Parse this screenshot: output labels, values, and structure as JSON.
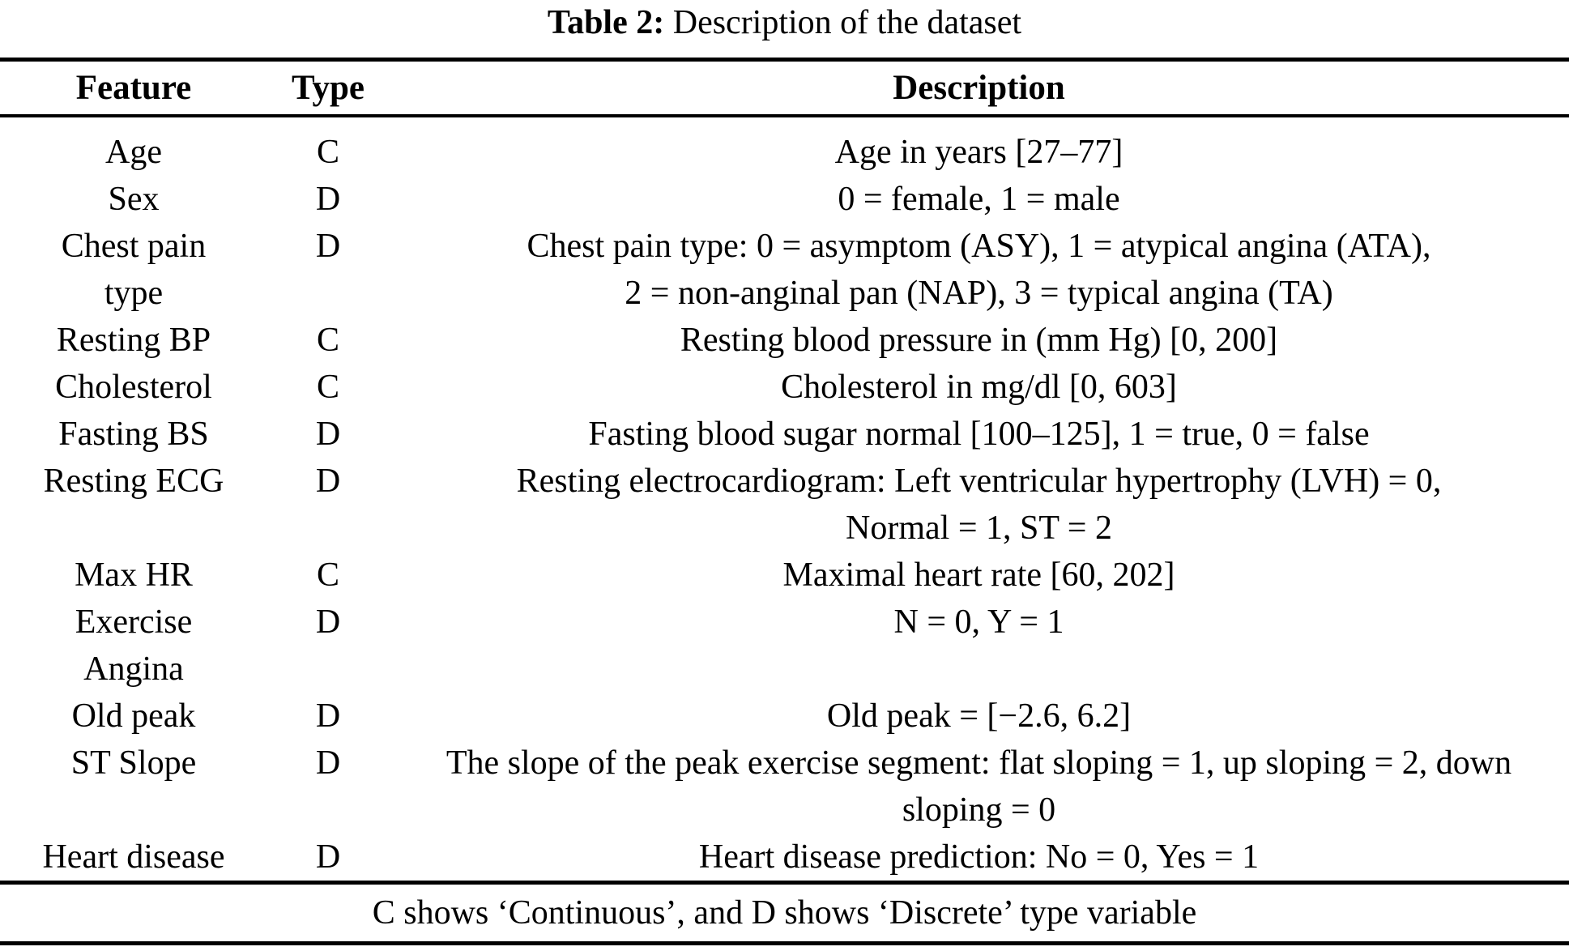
{
  "caption": {
    "label": "Table 2:",
    "text": " Description of the dataset"
  },
  "table": {
    "columns": [
      "Feature",
      "Type",
      "Description"
    ],
    "rows": [
      {
        "feature": [
          "Age"
        ],
        "type": "C",
        "description": [
          "Age in years [27–77]"
        ]
      },
      {
        "feature": [
          "Sex"
        ],
        "type": "D",
        "description": [
          "0 = female, 1 = male"
        ]
      },
      {
        "feature": [
          "Chest pain",
          "type"
        ],
        "type": "D",
        "description": [
          "Chest pain type: 0 = asymptom (ASY), 1 = atypical angina (ATA),",
          "2 = non-anginal pan (NAP), 3 = typical angina (TA)"
        ]
      },
      {
        "feature": [
          "Resting BP"
        ],
        "type": "C",
        "description": [
          "Resting blood pressure in (mm Hg) [0, 200]"
        ]
      },
      {
        "feature": [
          "Cholesterol"
        ],
        "type": "C",
        "description": [
          "Cholesterol in mg/dl [0, 603]"
        ]
      },
      {
        "feature": [
          "Fasting BS"
        ],
        "type": "D",
        "description": [
          "Fasting blood sugar normal [100–125], 1 = true, 0 = false"
        ]
      },
      {
        "feature": [
          "Resting ECG"
        ],
        "type": "D",
        "description": [
          "Resting electrocardiogram: Left ventricular hypertrophy (LVH) = 0,",
          "Normal = 1, ST = 2"
        ]
      },
      {
        "feature": [
          "Max HR"
        ],
        "type": "C",
        "description": [
          "Maximal heart rate [60, 202]"
        ]
      },
      {
        "feature": [
          "Exercise",
          "Angina"
        ],
        "type": "D",
        "description": [
          "N = 0, Y = 1"
        ]
      },
      {
        "feature": [
          "Old peak"
        ],
        "type": "D",
        "description": [
          "Old peak = [−2.6, 6.2]"
        ]
      },
      {
        "feature": [
          "ST Slope"
        ],
        "type": "D",
        "description": [
          "The slope of the peak exercise segment: flat sloping = 1, up sloping = 2, down",
          "sloping = 0"
        ]
      },
      {
        "feature": [
          "Heart disease"
        ],
        "type": "D",
        "description": [
          "Heart disease prediction: No = 0, Yes = 1"
        ]
      }
    ],
    "footnote": "C shows ‘Continuous’, and D shows ‘Discrete’ type variable"
  },
  "colors": {
    "text": "#000000",
    "background": "#ffffff",
    "rule": "#000000"
  }
}
